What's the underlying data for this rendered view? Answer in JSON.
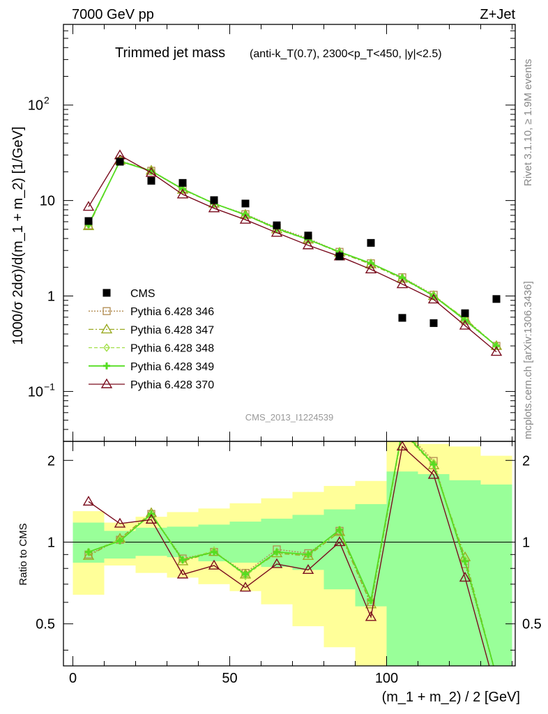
{
  "header": {
    "left": "7000 GeV pp",
    "right": "Z+Jet"
  },
  "plot_title": {
    "main": "Trimmed jet mass",
    "detail": "(anti-k_T(0.7), 2300<p_T<450, |y|<2.5)"
  },
  "side_text": {
    "rivet": "Rivet 3.1.10, ≥ 1.9M events",
    "mcplots": "mcplots.cern.ch [arXiv:1306.3436]"
  },
  "analysis_id": "CMS_2013_I1224539",
  "colors": {
    "cms": "#000000",
    "p346": "#b08a4f",
    "p347": "#9aaa22",
    "p348": "#a3e04a",
    "p349": "#55dd22",
    "p370": "#7a0c1e",
    "band_inner": "#99ff99",
    "band_outer": "#ffff99"
  },
  "chart_data": [
    {
      "type": "scatter",
      "panel": "main",
      "ylabel": "1000/σ 2dσ)/d(m_1 + m_2) [1/GeV]",
      "yscale": "log",
      "xlim": [
        -3,
        141
      ],
      "ylim": [
        0.03,
        700
      ],
      "y_tick_labels": [
        "10−1",
        "1",
        "10",
        "10²"
      ],
      "x": [
        5,
        15,
        25,
        35,
        45,
        55,
        65,
        75,
        85,
        95,
        105,
        115,
        125,
        135
      ],
      "series": [
        {
          "name": "CMS",
          "style": "square",
          "values": [
            6.1,
            25.5,
            16.1,
            15.3,
            10.1,
            9.3,
            5.5,
            4.3,
            2.6,
            3.6,
            0.59,
            0.52,
            0.66,
            0.93
          ]
        },
        {
          "name": "Pythia 6.428 346",
          "style": "square-open",
          "dash": "2,2",
          "values": [
            5.5,
            26.0,
            20.5,
            13.3,
            9.3,
            7.2,
            5.2,
            4.0,
            2.9,
            2.2,
            1.57,
            1.03,
            0.55,
            0.3
          ]
        },
        {
          "name": "Pythia 6.428 347",
          "style": "triangle-open",
          "dash": "7,3,2,3",
          "values": [
            5.4,
            26.2,
            20.6,
            13.0,
            9.3,
            7.1,
            5.0,
            3.9,
            2.85,
            2.15,
            1.52,
            1.0,
            0.58,
            0.3
          ]
        },
        {
          "name": "Pythia 6.428 348",
          "style": "diamond",
          "dash": "5,3",
          "values": [
            5.6,
            26.0,
            20.3,
            13.1,
            9.4,
            7.0,
            5.1,
            3.9,
            2.9,
            2.2,
            1.55,
            1.02,
            0.57,
            0.3
          ]
        },
        {
          "name": "Pythia 6.428 349",
          "style": "cross",
          "dash": "",
          "values": [
            5.6,
            25.8,
            20.4,
            13.2,
            9.3,
            7.1,
            5.1,
            3.9,
            2.9,
            2.2,
            1.55,
            1.0,
            0.56,
            0.3
          ]
        },
        {
          "name": "Pythia 6.428 370",
          "style": "triangle-open",
          "dash": "",
          "values": [
            8.6,
            29.8,
            19.5,
            11.6,
            8.3,
            6.3,
            4.6,
            3.4,
            2.6,
            1.9,
            1.33,
            0.92,
            0.49,
            0.26
          ]
        }
      ]
    },
    {
      "type": "line",
      "panel": "ratio",
      "ylabel": "Ratio to CMS",
      "xlabel": "(m_1 + m_2) / 2 [GeV]",
      "xlim": [
        -3,
        141
      ],
      "ylim": [
        0.35,
        2.35
      ],
      "x_tick_labels": [
        "0",
        "50",
        "100"
      ],
      "y_tick_labels": [
        "0.5",
        "1",
        "2"
      ],
      "x": [
        5,
        15,
        25,
        35,
        45,
        55,
        65,
        75,
        85,
        95,
        105,
        115,
        125,
        135
      ],
      "band_edges": [
        0,
        10,
        20,
        30,
        40,
        50,
        60,
        70,
        80,
        90,
        100,
        110,
        120,
        130,
        140
      ],
      "band_inner": [
        [
          0.84,
          1.18
        ],
        [
          0.87,
          1.1
        ],
        [
          0.89,
          1.13
        ],
        [
          0.88,
          1.14
        ],
        [
          0.85,
          1.16
        ],
        [
          0.84,
          1.19
        ],
        [
          0.81,
          1.22
        ],
        [
          0.79,
          1.26
        ],
        [
          0.67,
          1.32
        ],
        [
          0.58,
          1.38
        ],
        [
          0.35,
          1.82
        ],
        [
          0.35,
          1.78
        ],
        [
          0.35,
          1.69
        ],
        [
          0.35,
          1.63
        ]
      ],
      "band_outer": [
        [
          0.64,
          1.3
        ],
        [
          0.82,
          1.18
        ],
        [
          0.77,
          1.24
        ],
        [
          0.74,
          1.29
        ],
        [
          0.7,
          1.33
        ],
        [
          0.66,
          1.39
        ],
        [
          0.59,
          1.45
        ],
        [
          0.49,
          1.53
        ],
        [
          0.41,
          1.61
        ],
        [
          0.35,
          1.68
        ],
        [
          0.35,
          2.35
        ],
        [
          0.35,
          2.3
        ],
        [
          0.35,
          2.25
        ],
        [
          0.35,
          2.08
        ]
      ],
      "series": [
        {
          "name": "Pythia 6.428 346",
          "values": [
            0.9,
            1.02,
            1.27,
            0.87,
            0.92,
            0.77,
            0.94,
            0.91,
            1.1,
            0.6,
            2.62,
            1.99,
            0.83,
            0.32
          ]
        },
        {
          "name": "Pythia 6.428 347",
          "values": [
            0.89,
            1.03,
            1.28,
            0.85,
            0.92,
            0.76,
            0.91,
            0.89,
            1.09,
            0.59,
            2.55,
            1.92,
            0.88,
            0.32
          ]
        },
        {
          "name": "Pythia 6.428 348",
          "values": [
            0.92,
            1.02,
            1.26,
            0.86,
            0.93,
            0.75,
            0.92,
            0.9,
            1.11,
            0.61,
            2.6,
            1.96,
            0.86,
            0.32
          ]
        },
        {
          "name": "Pythia 6.428 349",
          "values": [
            0.92,
            1.01,
            1.27,
            0.86,
            0.92,
            0.76,
            0.92,
            0.9,
            1.11,
            0.61,
            2.58,
            1.93,
            0.85,
            0.32
          ]
        },
        {
          "name": "Pythia 6.428 370",
          "values": [
            1.41,
            1.17,
            1.21,
            0.76,
            0.82,
            0.68,
            0.83,
            0.79,
            1.0,
            0.53,
            2.25,
            1.77,
            0.74,
            0.28
          ]
        }
      ]
    }
  ]
}
